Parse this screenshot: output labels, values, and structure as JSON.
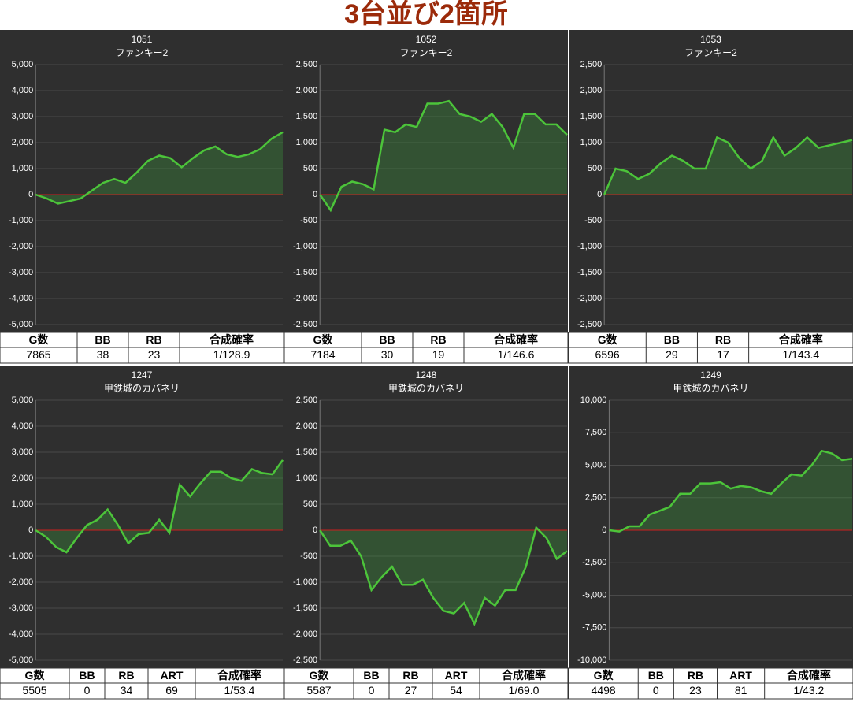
{
  "title": "3台並び2箇所",
  "chart_data": [
    {
      "type": "line",
      "title": "1051",
      "subtitle": "ファンキー2",
      "color": "#4cc43a",
      "baseline_color": "#cc1f1f",
      "grid": true,
      "values": [
        0,
        -150,
        -350,
        -250,
        -150,
        150,
        450,
        600,
        450,
        850,
        1300,
        1500,
        1400,
        1050,
        1400,
        1700,
        1850,
        1550,
        1450,
        1550,
        1750,
        2150,
        2400
      ],
      "ylim": [
        -5000,
        5000
      ],
      "yticks": [
        {
          "value": -5000,
          "label": "-5,000"
        },
        {
          "value": -4000,
          "label": "-4,000"
        },
        {
          "value": -3000,
          "label": "-3,000"
        },
        {
          "value": -2000,
          "label": "-2,000"
        },
        {
          "value": -1000,
          "label": "-1,000"
        },
        0,
        {
          "value": 1000,
          "label": "1,000"
        },
        {
          "value": 2000,
          "label": "2,000"
        },
        {
          "value": 3000,
          "label": "3,000"
        },
        {
          "value": 4000,
          "label": "4,000"
        },
        {
          "value": 5000,
          "label": "5,000"
        }
      ],
      "table": {
        "header": [
          "G数",
          "BB",
          "RB",
          "合成確率"
        ],
        "row": [
          7865,
          38,
          23,
          "1/128.9"
        ]
      }
    },
    {
      "type": "line",
      "title": "1052",
      "subtitle": "ファンキー2",
      "color": "#4cc43a",
      "baseline_color": "#cc1f1f",
      "grid": true,
      "values": [
        0,
        -300,
        150,
        250,
        200,
        100,
        1250,
        1200,
        1350,
        1300,
        1750,
        1750,
        1800,
        1550,
        1500,
        1400,
        1550,
        1300,
        900,
        1550,
        1550,
        1350,
        1350,
        1150
      ],
      "ylim": [
        -2500,
        2500
      ],
      "yticks": [
        {
          "value": -2500,
          "label": "-2,500"
        },
        {
          "value": -2000,
          "label": "-2,000"
        },
        {
          "value": -1500,
          "label": "-1,500"
        },
        {
          "value": -1000,
          "label": "-1,000"
        },
        -500,
        0,
        500,
        {
          "value": 1000,
          "label": "1,000"
        },
        {
          "value": 1500,
          "label": "1,500"
        },
        {
          "value": 2000,
          "label": "2,000"
        },
        {
          "value": 2500,
          "label": "2,500"
        }
      ],
      "table": {
        "header": [
          "G数",
          "BB",
          "RB",
          "合成確率"
        ],
        "row": [
          7184,
          30,
          19,
          "1/146.6"
        ]
      }
    },
    {
      "type": "line",
      "title": "1053",
      "subtitle": "ファンキー2",
      "color": "#4cc43a",
      "baseline_color": "#cc1f1f",
      "grid": true,
      "values": [
        0,
        500,
        450,
        300,
        400,
        600,
        750,
        650,
        500,
        500,
        1100,
        1000,
        700,
        500,
        650,
        1100,
        750,
        900,
        1100,
        900,
        950,
        1000,
        1050
      ],
      "ylim": [
        -2500,
        2500
      ],
      "yticks": [
        {
          "value": -2500,
          "label": "-2,500"
        },
        {
          "value": -2000,
          "label": "-2,000"
        },
        {
          "value": -1500,
          "label": "-1,500"
        },
        {
          "value": -1000,
          "label": "-1,000"
        },
        -500,
        0,
        500,
        {
          "value": 1000,
          "label": "1,000"
        },
        {
          "value": 1500,
          "label": "1,500"
        },
        {
          "value": 2000,
          "label": "2,000"
        },
        {
          "value": 2500,
          "label": "2,500"
        }
      ],
      "table": {
        "header": [
          "G数",
          "BB",
          "RB",
          "合成確率"
        ],
        "row": [
          6596,
          29,
          17,
          "1/143.4"
        ]
      }
    },
    {
      "type": "line",
      "title": "1247",
      "subtitle": "甲鉄城のカバネリ",
      "color": "#4cc43a",
      "baseline_color": "#cc1f1f",
      "grid": true,
      "values": [
        0,
        -250,
        -650,
        -850,
        -300,
        200,
        400,
        800,
        200,
        -500,
        -150,
        -100,
        400,
        -100,
        1750,
        1300,
        1800,
        2250,
        2250,
        2000,
        1900,
        2350,
        2200,
        2150,
        2700
      ],
      "ylim": [
        -5000,
        5000
      ],
      "yticks": [
        {
          "value": -5000,
          "label": "-5,000"
        },
        {
          "value": -4000,
          "label": "-4,000"
        },
        {
          "value": -3000,
          "label": "-3,000"
        },
        {
          "value": -2000,
          "label": "-2,000"
        },
        {
          "value": -1000,
          "label": "-1,000"
        },
        0,
        {
          "value": 1000,
          "label": "1,000"
        },
        {
          "value": 2000,
          "label": "2,000"
        },
        {
          "value": 3000,
          "label": "3,000"
        },
        {
          "value": 4000,
          "label": "4,000"
        },
        {
          "value": 5000,
          "label": "5,000"
        }
      ],
      "table": {
        "header": [
          "G数",
          "BB",
          "RB",
          "ART",
          "合成確率"
        ],
        "row": [
          5505,
          0,
          34,
          69,
          "1/53.4"
        ]
      }
    },
    {
      "type": "line",
      "title": "1248",
      "subtitle": "甲鉄城のカバネリ",
      "color": "#4cc43a",
      "baseline_color": "#cc1f1f",
      "grid": true,
      "values": [
        0,
        -300,
        -300,
        -200,
        -500,
        -1150,
        -900,
        -700,
        -1050,
        -1050,
        -950,
        -1300,
        -1550,
        -1600,
        -1400,
        -1800,
        -1300,
        -1450,
        -1150,
        -1150,
        -700,
        50,
        -150,
        -550,
        -400
      ],
      "ylim": [
        -2500,
        2500
      ],
      "yticks": [
        {
          "value": -2500,
          "label": "-2,500"
        },
        {
          "value": -2000,
          "label": "-2,000"
        },
        {
          "value": -1500,
          "label": "-1,500"
        },
        {
          "value": -1000,
          "label": "-1,000"
        },
        -500,
        0,
        500,
        {
          "value": 1000,
          "label": "1,000"
        },
        {
          "value": 1500,
          "label": "1,500"
        },
        {
          "value": 2000,
          "label": "2,000"
        },
        {
          "value": 2500,
          "label": "2,500"
        }
      ],
      "table": {
        "header": [
          "G数",
          "BB",
          "RB",
          "ART",
          "合成確率"
        ],
        "row": [
          5587,
          0,
          27,
          54,
          "1/69.0"
        ]
      }
    },
    {
      "type": "line",
      "title": "1249",
      "subtitle": "甲鉄城のカバネリ",
      "color": "#4cc43a",
      "baseline_color": "#cc1f1f",
      "grid": true,
      "values": [
        0,
        -100,
        300,
        300,
        1200,
        1500,
        1800,
        2800,
        2800,
        3600,
        3600,
        3700,
        3200,
        3400,
        3300,
        3000,
        2800,
        3600,
        4300,
        4200,
        5000,
        6100,
        5900,
        5400,
        5500
      ],
      "ylim": [
        -10000,
        10000
      ],
      "yticks": [
        {
          "value": -10000,
          "label": "-10,000"
        },
        {
          "value": -7500,
          "label": "-7,500"
        },
        {
          "value": -5000,
          "label": "-5,000"
        },
        {
          "value": -2500,
          "label": "-2,500"
        },
        0,
        {
          "value": 2500,
          "label": "2,500"
        },
        {
          "value": 5000,
          "label": "5,000"
        },
        {
          "value": 7500,
          "label": "7,500"
        },
        {
          "value": 10000,
          "label": "10,000"
        }
      ],
      "table": {
        "header": [
          "G数",
          "BB",
          "RB",
          "ART",
          "合成確率"
        ],
        "row": [
          4498,
          0,
          23,
          81,
          "1/43.2"
        ]
      }
    }
  ]
}
